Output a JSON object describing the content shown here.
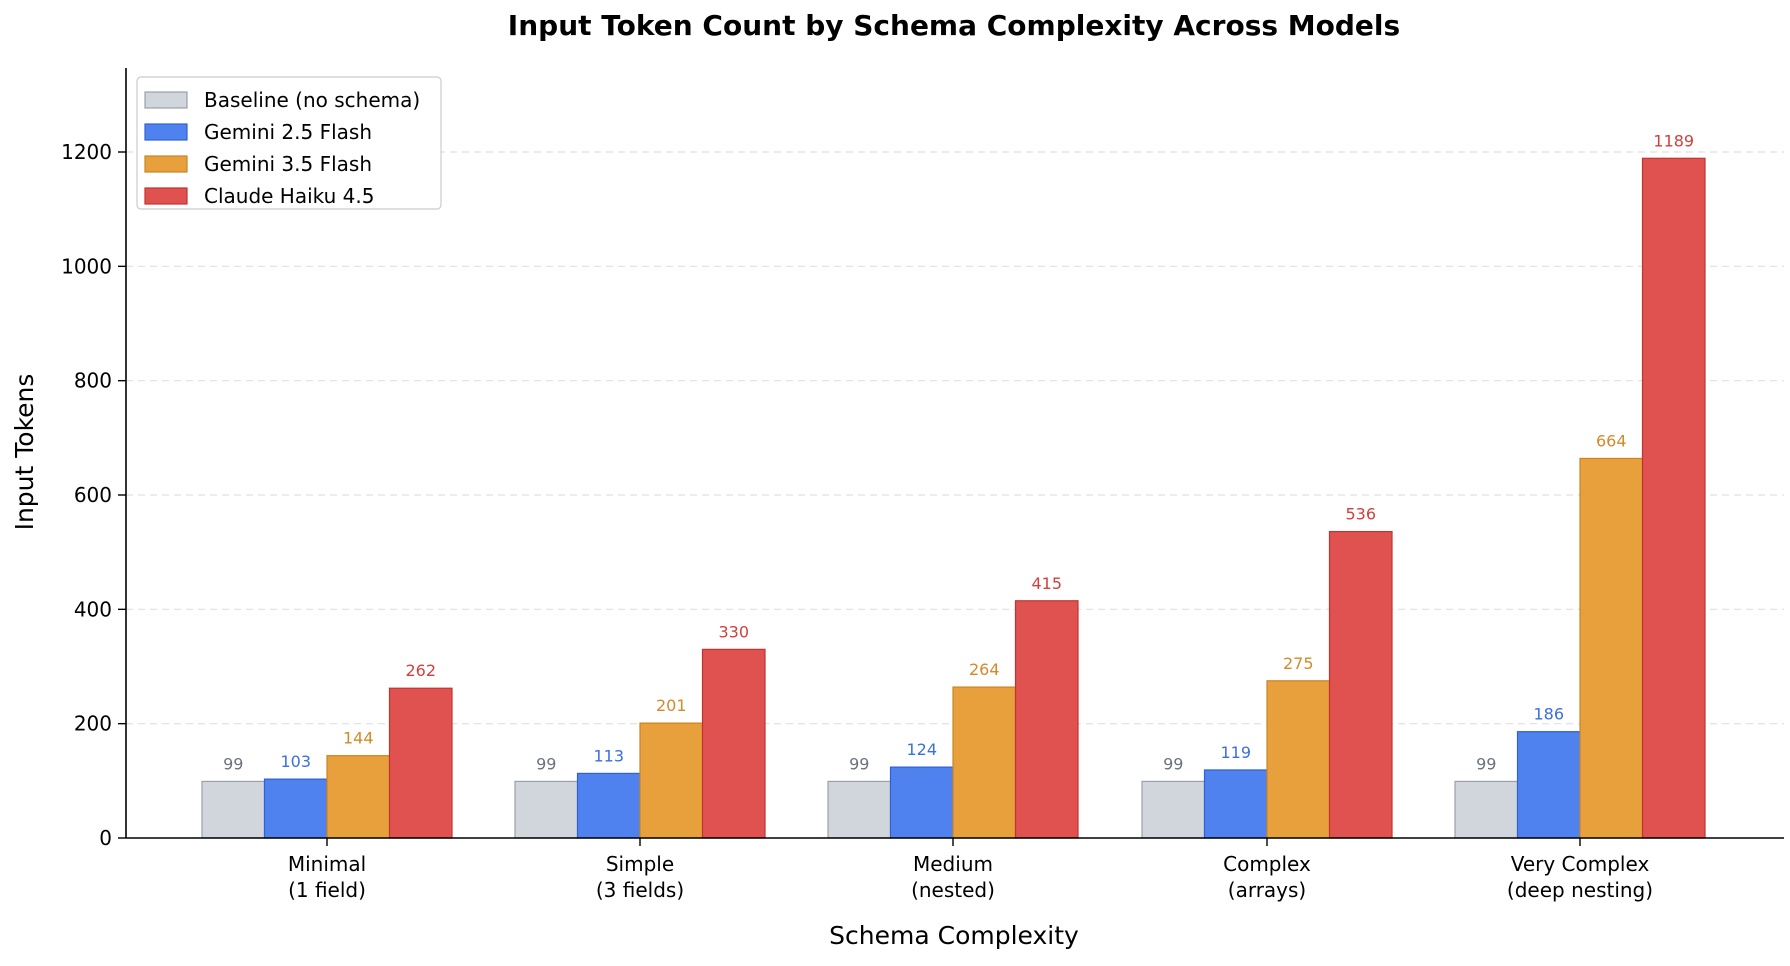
{
  "chart_data": {
    "type": "bar",
    "title": "Input Token Count by Schema Complexity Across Models",
    "xlabel": "Schema Complexity",
    "ylabel": "Input Tokens",
    "ylim": [
      0,
      1350
    ],
    "yticks": [
      0,
      200,
      400,
      600,
      800,
      1000,
      1200
    ],
    "grid": "y-dashed",
    "legend_position": "top-left",
    "categories": [
      [
        "Minimal",
        "(1 field)"
      ],
      [
        "Simple",
        "(3 fields)"
      ],
      [
        "Medium",
        "(nested)"
      ],
      [
        "Complex",
        "(arrays)"
      ],
      [
        "Very Complex",
        "(deep nesting)"
      ]
    ],
    "series": [
      {
        "name": "Baseline (no schema)",
        "values": [
          99,
          99,
          99,
          99,
          99
        ],
        "color": "#d1d5dc",
        "edge": "#9ca0a8",
        "label_color": "#6b7280"
      },
      {
        "name": "Gemini 2.5 Flash",
        "values": [
          103,
          113,
          124,
          119,
          186
        ],
        "color": "#4f81ef",
        "edge": "#2f62d0",
        "label_color": "#3b6fe0"
      },
      {
        "name": "Gemini 3.5 Flash",
        "values": [
          144,
          201,
          264,
          275,
          664
        ],
        "color": "#e8a03c",
        "edge": "#c98424",
        "label_color": "#d4892a"
      },
      {
        "name": "Claude Haiku 4.5",
        "values": [
          262,
          330,
          415,
          536,
          1189
        ],
        "color": "#df524f",
        "edge": "#c23430",
        "label_color": "#d0403c"
      }
    ]
  }
}
